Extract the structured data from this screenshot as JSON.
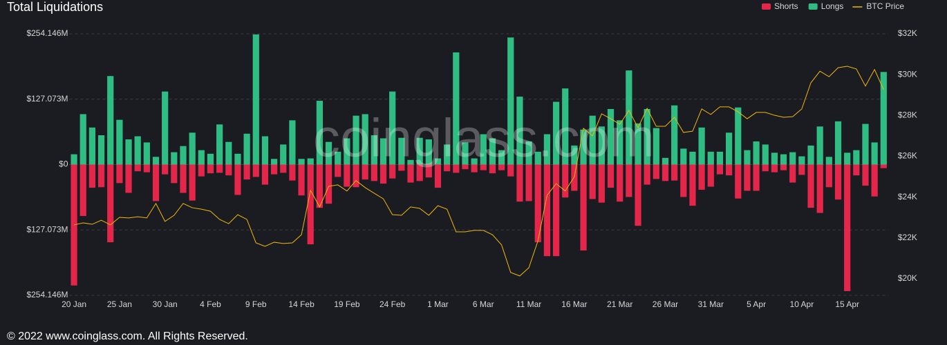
{
  "chart_data": {
    "type": "bar",
    "title": "Total Liquidations",
    "watermark": "coinglass.com",
    "categories": [
      "20 Jan",
      null,
      null,
      null,
      null,
      "25 Jan",
      null,
      null,
      null,
      null,
      "30 Jan",
      null,
      null,
      null,
      null,
      "4 Feb",
      null,
      null,
      null,
      null,
      "9 Feb",
      null,
      null,
      null,
      null,
      "14 Feb",
      null,
      null,
      null,
      null,
      "19 Feb",
      null,
      null,
      null,
      null,
      "24 Feb",
      null,
      null,
      null,
      null,
      "1 Mar",
      null,
      null,
      null,
      null,
      "6 Mar",
      null,
      null,
      null,
      null,
      "11 Mar",
      null,
      null,
      null,
      null,
      "16 Mar",
      null,
      null,
      null,
      null,
      "21 Mar",
      null,
      null,
      null,
      null,
      "26 Mar",
      null,
      null,
      null,
      null,
      "31 Mar",
      null,
      null,
      null,
      null,
      "5 Apr",
      null,
      null,
      null,
      null,
      "10 Apr",
      null,
      null,
      null,
      null,
      "15 Apr",
      null,
      null,
      null,
      null
    ],
    "series": [
      {
        "name": "Shorts",
        "color": "#e3264a",
        "values": [
          -235,
          -100,
          -45,
          -44,
          -151,
          -36,
          -55,
          -13,
          -15,
          -71,
          -19,
          -36,
          -55,
          -70,
          -23,
          -17,
          -16,
          -21,
          -59,
          -29,
          -24,
          -39,
          -19,
          -16,
          -31,
          -60,
          -155,
          -84,
          -76,
          -24,
          -43,
          -44,
          -29,
          -32,
          -37,
          -27,
          -12,
          -35,
          -32,
          -25,
          -45,
          -13,
          -16,
          -9,
          -15,
          -11,
          -17,
          -11,
          -23,
          -72,
          -71,
          -151,
          -178,
          -178,
          -64,
          -51,
          -167,
          -67,
          -74,
          -45,
          -72,
          -63,
          -119,
          -39,
          -28,
          -32,
          -31,
          -63,
          -80,
          -49,
          -43,
          -19,
          -21,
          -66,
          -51,
          -51,
          -13,
          -15,
          -11,
          -35,
          -20,
          -84,
          -94,
          -44,
          -68,
          -246,
          -21,
          -41,
          -62,
          -7
        ]
      },
      {
        "name": "Longs",
        "color": "#2fbd83",
        "values": [
          20,
          98,
          72,
          57,
          172,
          87,
          49,
          55,
          43,
          15,
          142,
          24,
          36,
          62,
          28,
          21,
          78,
          44,
          21,
          60,
          253,
          55,
          11,
          39,
          86,
          11,
          12,
          124,
          44,
          25,
          51,
          95,
          98,
          57,
          51,
          142,
          52,
          9,
          52,
          49,
          12,
          39,
          218,
          43,
          12,
          59,
          51,
          28,
          247,
          132,
          45,
          25,
          59,
          122,
          148,
          37,
          68,
          95,
          74,
          108,
          86,
          183,
          80,
          108,
          71,
          13,
          115,
          31,
          25,
          72,
          25,
          25,
          62,
          111,
          28,
          45,
          39,
          23,
          20,
          24,
          16,
          37,
          74,
          15,
          84,
          23,
          28,
          79,
          43,
          180
        ]
      },
      {
        "name": "BTC Price",
        "color": "#f0b90b",
        "axis": "y2",
        "values": [
          22640,
          22740,
          22670,
          22870,
          22640,
          23010,
          22980,
          23040,
          22980,
          23690,
          22810,
          23110,
          23690,
          23480,
          23410,
          23310,
          22910,
          22700,
          23140,
          22910,
          21760,
          21590,
          21790,
          21730,
          21760,
          22160,
          24330,
          23520,
          24530,
          24600,
          24300,
          24810,
          24470,
          24190,
          23920,
          23140,
          23110,
          23520,
          23450,
          23110,
          23580,
          23410,
          22300,
          22300,
          22370,
          22370,
          22160,
          21660,
          20310,
          20140,
          20540,
          21860,
          24090,
          24660,
          24300,
          25000,
          27370,
          27000,
          28080,
          27840,
          27570,
          28250,
          27400,
          28350,
          27470,
          27470,
          27910,
          27170,
          27230,
          28320,
          28050,
          28420,
          28420,
          28180,
          27840,
          28150,
          28150,
          28010,
          27910,
          27940,
          28320,
          29600,
          30170,
          29900,
          30340,
          30410,
          30280,
          29440,
          30250,
          29260
        ]
      }
    ],
    "ylim": [
      -254.146,
      254.146
    ],
    "yticks": [
      {
        "value": -254.146,
        "label": "$254.146M"
      },
      {
        "value": -127.073,
        "label": "$127.073M"
      },
      {
        "value": 0,
        "label": "$0"
      },
      {
        "value": 127.073,
        "label": "$127.073M"
      },
      {
        "value": 254.146,
        "label": "$254.146M"
      }
    ],
    "y2lim": [
      19190,
      32000
    ],
    "y2ticks": [
      {
        "value": 20000,
        "label": "$20K"
      },
      {
        "value": 22000,
        "label": "$22K"
      },
      {
        "value": 24000,
        "label": "$24K"
      },
      {
        "value": 26000,
        "label": "$26K"
      },
      {
        "value": 28000,
        "label": "$28K"
      },
      {
        "value": 30000,
        "label": "$30K"
      },
      {
        "value": 32000,
        "label": "$32K"
      }
    ],
    "grid": true,
    "legend": "top-right"
  },
  "footer": "© 2022 www.coinglass.com. All Rights Reserved."
}
